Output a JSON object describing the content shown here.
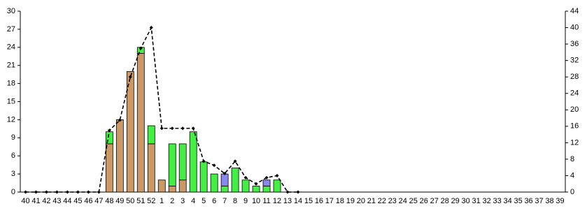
{
  "chart_data": {
    "type": "bar",
    "categories": [
      "40",
      "41",
      "42",
      "43",
      "44",
      "45",
      "46",
      "47",
      "48",
      "49",
      "50",
      "51",
      "52",
      "1",
      "2",
      "3",
      "4",
      "5",
      "6",
      "7",
      "8",
      "9",
      "10",
      "11",
      "12",
      "13",
      "14",
      "15",
      "16",
      "17",
      "18",
      "19",
      "20",
      "21",
      "22",
      "23",
      "24",
      "25",
      "26",
      "27",
      "28",
      "29",
      "30",
      "31",
      "32",
      "33",
      "34",
      "35",
      "36",
      "37",
      "38",
      "39"
    ],
    "series": [
      {
        "color": "#cc9966",
        "values": [
          null,
          null,
          null,
          null,
          null,
          null,
          null,
          null,
          8,
          12,
          20,
          23,
          8,
          2,
          1,
          2,
          null,
          null,
          null,
          null,
          null,
          null,
          null,
          null,
          null,
          null,
          null,
          null,
          null,
          null,
          null,
          null,
          null,
          null,
          null,
          null,
          null,
          null,
          null,
          null,
          null,
          null,
          null,
          null,
          null,
          null,
          null,
          null,
          null,
          null,
          null,
          null
        ]
      },
      {
        "color": "#44ee44",
        "values": [
          null,
          null,
          null,
          null,
          null,
          null,
          null,
          null,
          2,
          null,
          null,
          1,
          3,
          null,
          7,
          6,
          10,
          5,
          3,
          1,
          4,
          2,
          1,
          1,
          2,
          null,
          null,
          null,
          null,
          null,
          null,
          null,
          null,
          null,
          null,
          null,
          null,
          null,
          null,
          null,
          null,
          null,
          null,
          null,
          null,
          null,
          null,
          null,
          null,
          null,
          null,
          null
        ]
      },
      {
        "color": "#8888ee",
        "values": [
          null,
          null,
          null,
          null,
          null,
          null,
          null,
          null,
          null,
          null,
          null,
          null,
          null,
          null,
          null,
          null,
          null,
          null,
          null,
          2,
          null,
          null,
          null,
          1,
          null,
          null,
          null,
          null,
          null,
          null,
          null,
          null,
          null,
          null,
          null,
          null,
          null,
          null,
          null,
          null,
          null,
          null,
          null,
          null,
          null,
          null,
          null,
          null,
          null,
          null,
          null,
          null
        ]
      },
      {
        "type": "line",
        "axis": "y2",
        "color": "#000000",
        "values": [
          0,
          0,
          0,
          0,
          0,
          0,
          0,
          0,
          15,
          17.5,
          28,
          35,
          40,
          15.5,
          15.5,
          15.5,
          15.5,
          7.5,
          6.5,
          4.5,
          7.5,
          3.5,
          2,
          3.5,
          4,
          0,
          0,
          null,
          null,
          null,
          null,
          null,
          null,
          null,
          null,
          null,
          null,
          null,
          null,
          null,
          null,
          null,
          null,
          null,
          null,
          null,
          null,
          null,
          null,
          null,
          null,
          null
        ]
      }
    ],
    "stacked": true,
    "ylim": [
      0,
      30
    ],
    "yticks": [
      0,
      3,
      6,
      9,
      12,
      15,
      18,
      21,
      24,
      27,
      30
    ],
    "y2lim": [
      0,
      44
    ],
    "y2ticks": [
      0,
      4,
      8,
      12,
      16,
      20,
      24,
      28,
      32,
      36,
      40,
      44
    ]
  }
}
